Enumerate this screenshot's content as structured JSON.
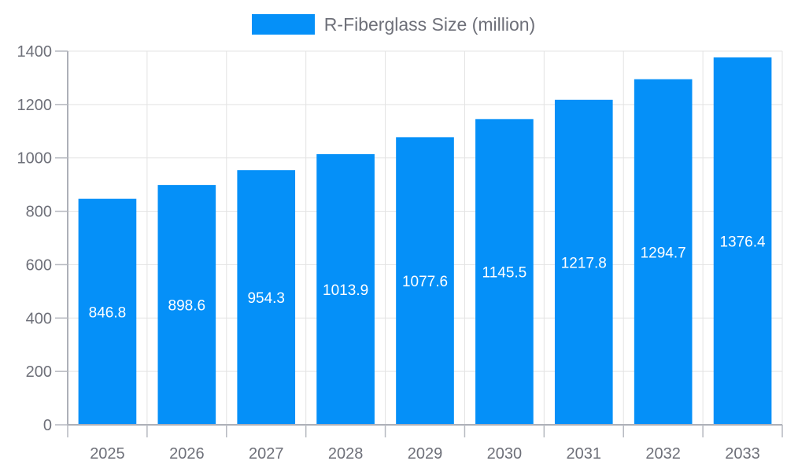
{
  "chart_data": {
    "type": "bar",
    "title": "R-Fiberglass Size (million)",
    "legend_label": "R-Fiberglass Size (million)",
    "legend_position": "top-center",
    "categories": [
      "2025",
      "2026",
      "2027",
      "2028",
      "2029",
      "2030",
      "2031",
      "2032",
      "2033"
    ],
    "series": [
      {
        "name": "R-Fiberglass Size (million)",
        "values": [
          846.8,
          898.6,
          954.3,
          1013.9,
          1077.6,
          1145.5,
          1217.8,
          1294.7,
          1376.4
        ],
        "color": "#0590f8"
      }
    ],
    "value_labels": [
      "846.8",
      "898.6",
      "954.3",
      "1013.9",
      "1077.6",
      "1145.5",
      "1217.8",
      "1294.7",
      "1376.4"
    ],
    "value_label_position": "inside-middle",
    "value_label_color": "#ffffff",
    "xlabel": "",
    "ylabel": "",
    "ylim": [
      0,
      1400
    ],
    "yticks": [
      0,
      200,
      400,
      600,
      800,
      1000,
      1200,
      1400
    ],
    "grid": true
  },
  "style": {
    "bar_color": "#0590f8",
    "grid_line_color": "#e3e3e3",
    "axis_line_color": "#adb0b8",
    "tick_color": "#b6b9c0",
    "axis_label_color": "#6e7079",
    "legend_text_color": "#6e7079",
    "background_color": "#ffffff"
  }
}
